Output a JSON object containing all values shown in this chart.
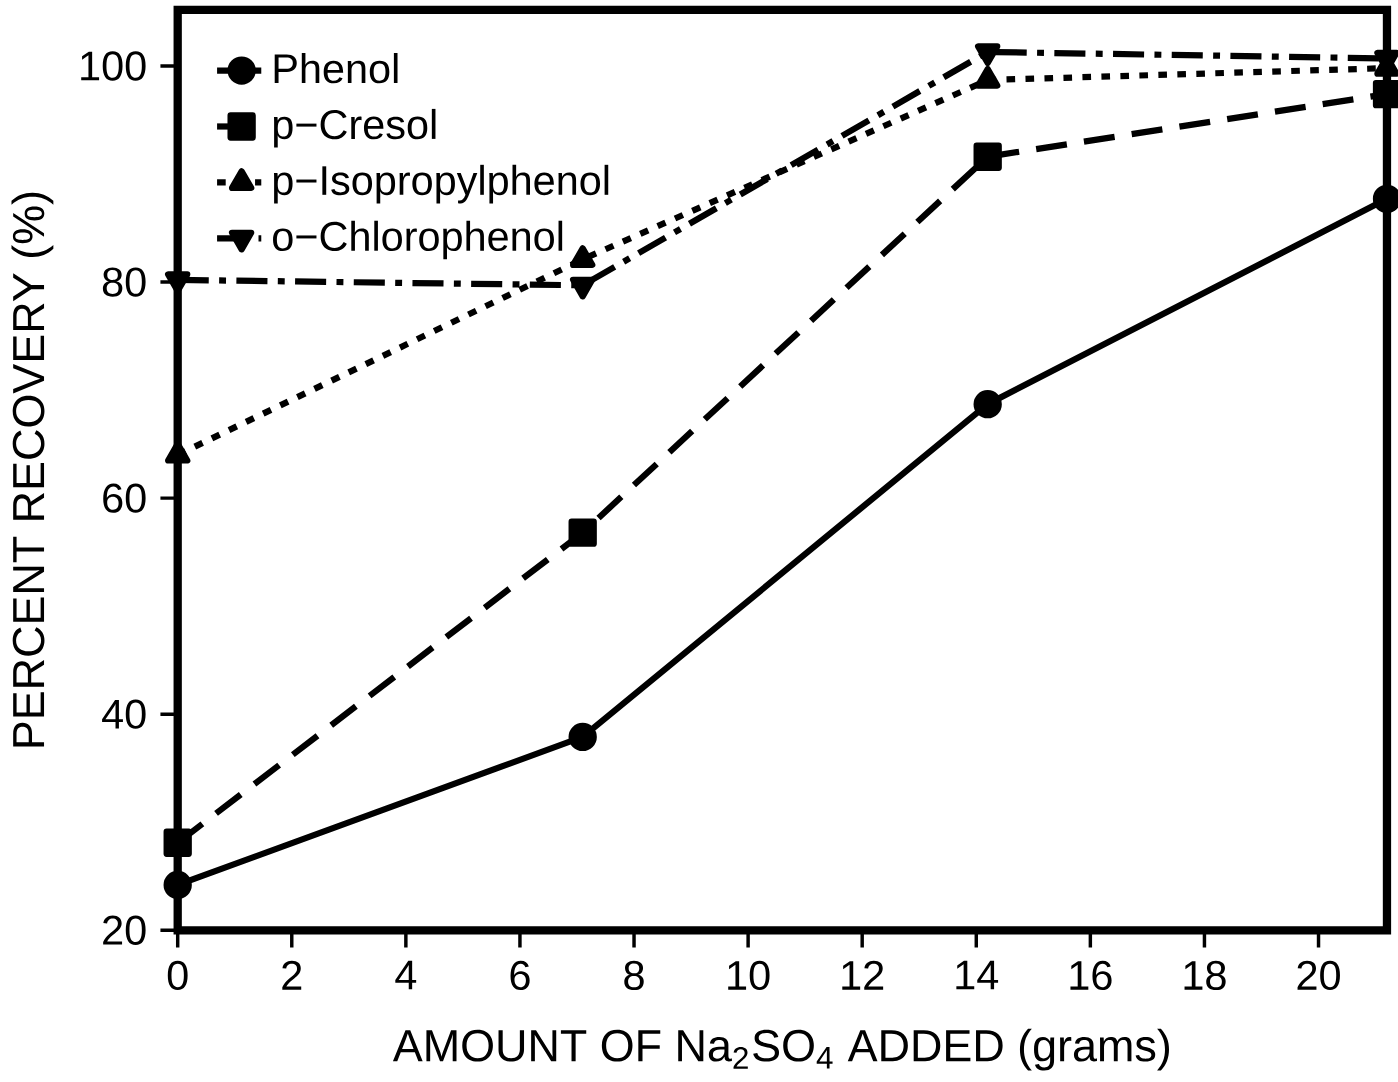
{
  "chart_data": {
    "type": "line",
    "xlabel": "AMOUNT OF Na$_{2}$SO$_{4}$ ADDED (grams)",
    "ylabel": "PERCENT RECOVERY (%)",
    "x": [
      0,
      7.1,
      14.2,
      21.2
    ],
    "xlim": [
      0,
      21.2
    ],
    "ylim": [
      20,
      105.2
    ],
    "xticks": [
      0,
      2,
      4,
      6,
      8,
      10,
      12,
      14,
      16,
      18,
      20
    ],
    "yticks": [
      20,
      40,
      60,
      80,
      100
    ],
    "grid": false,
    "legend": "top left",
    "series": [
      {
        "name": "Phenol",
        "color": "#000000",
        "marker": "circle",
        "line_style": "solid",
        "values": [
          24.2,
          37.9,
          68.7,
          87.7
        ]
      },
      {
        "name": "p−Cresol",
        "color": "#000000",
        "marker": "square",
        "line_style": "dashed",
        "values": [
          28.1,
          56.8,
          91.6,
          97.4
        ]
      },
      {
        "name": "p−Isopropylphenol",
        "color": "#000000",
        "marker": "triangle",
        "line_style": "dotted",
        "values": [
          64.0,
          82.1,
          98.7,
          99.8
        ]
      },
      {
        "name": "o−Chlorophenol",
        "color": "#000000",
        "marker": "triangle down",
        "line_style": "dashdot",
        "values": [
          80.2,
          79.7,
          101.3,
          100.7
        ]
      }
    ]
  }
}
